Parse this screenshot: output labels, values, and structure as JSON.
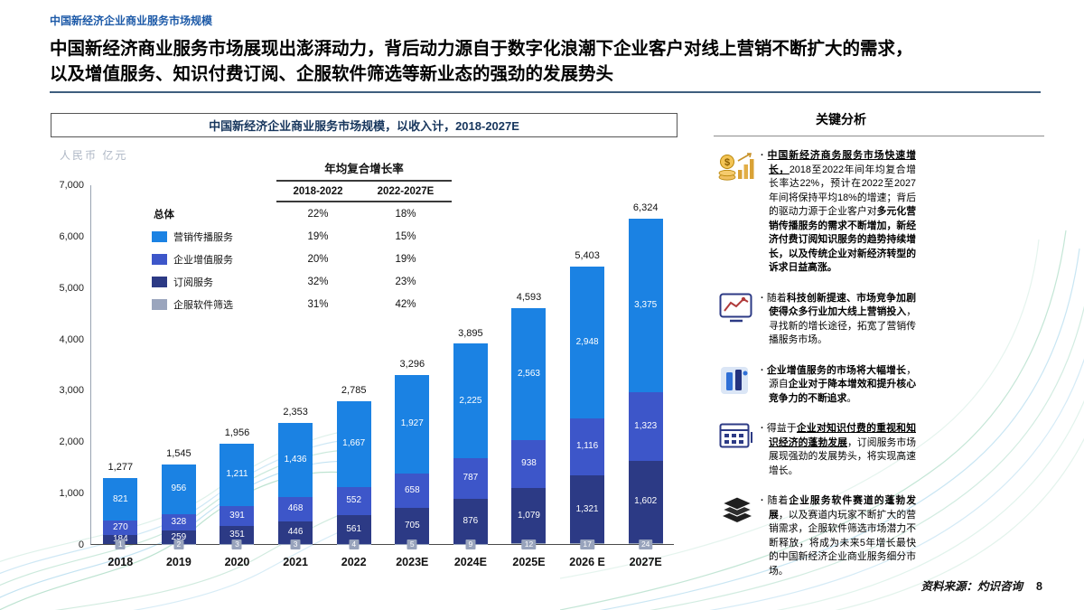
{
  "page": {
    "kicker": "中国新经济企业商业服务市场规模",
    "headline_line1": "中国新经济商业服务市场展现出澎湃动力，背后动力源自于数字化浪潮下企业客户对线上营销不断扩大的需求，",
    "headline_line2": "以及增值服务、知识付费订阅、企服软件筛选等新业态的强劲的发展势头",
    "source_label": "资料来源：灼识咨询",
    "page_number": "8"
  },
  "chart": {
    "title": "中国新经济企业商业服务市场规模，以收入计，2018-2027E",
    "unit_label": "人民币 亿元",
    "cagr": {
      "title": "年均复合增长率",
      "columns": [
        "2018-2022",
        "2022-2027E"
      ],
      "rows": [
        {
          "id": "total",
          "label": "总体",
          "header": true,
          "color": null,
          "values": [
            "22%",
            "18%"
          ]
        },
        {
          "id": "marketing-communication-services",
          "label": "营销传播服务",
          "header": false,
          "color": "#1b82e3",
          "values": [
            "19%",
            "15%"
          ]
        },
        {
          "id": "value-added-services",
          "label": "企业增值服务",
          "header": false,
          "color": "#3d56c9",
          "values": [
            "20%",
            "19%"
          ]
        },
        {
          "id": "subscription-services",
          "label": "订阅服务",
          "header": false,
          "color": "#2c3a85",
          "values": [
            "32%",
            "23%"
          ]
        },
        {
          "id": "software-selection",
          "label": "企服软件筛选",
          "header": false,
          "color": "#9aa5bd",
          "values": [
            "31%",
            "42%"
          ]
        }
      ]
    }
  },
  "chart_data": {
    "type": "bar",
    "stacked": true,
    "title": "中国新经济企业商业服务市场规模，以收入计，2018-2027E",
    "ylabel": "人民币 亿元",
    "ylim": [
      0,
      7000
    ],
    "ytick_step": 1000,
    "grid": false,
    "legend_position": "upper-left",
    "categories": [
      "2018",
      "2019",
      "2020",
      "2021",
      "2022",
      "2023E",
      "2024E",
      "2025E",
      "2026 E",
      "2027E"
    ],
    "series": [
      {
        "id": "marketing-communication-services",
        "name": "营销传播服务",
        "color": "#1b82e3",
        "values": [
          821,
          956,
          1211,
          1436,
          1667,
          1927,
          2225,
          2563,
          2948,
          3375
        ]
      },
      {
        "id": "value-added-services",
        "name": "企业增值服务",
        "color": "#3d56c9",
        "values": [
          270,
          328,
          391,
          468,
          552,
          658,
          787,
          938,
          1116,
          1323
        ]
      },
      {
        "id": "subscription-services",
        "name": "订阅服务",
        "color": "#2c3a85",
        "values": [
          184,
          259,
          351,
          446,
          561,
          705,
          876,
          1079,
          1321,
          1602
        ]
      },
      {
        "id": "software-selection",
        "name": "企服软件筛选",
        "color": "#9aa5bd",
        "badge": true,
        "values": [
          1,
          2,
          3,
          3,
          4,
          5,
          9,
          12,
          17,
          24
        ]
      }
    ],
    "totals": [
      1277,
      1545,
      1956,
      2353,
      2785,
      3296,
      3895,
      4593,
      5403,
      6324
    ]
  },
  "analysis": {
    "title": "关键分析",
    "items": [
      {
        "icon": "coin-growth-icon",
        "runs": [
          {
            "t": "中国新经济商务服务市场快速增长，",
            "b": true,
            "u": true
          },
          {
            "t": "2018至2022年间年均复合增长率达22%，预计在2022至2027年间将保持平均18%的增速；背后的驱动力源于企业客户对",
            "b": false
          },
          {
            "t": "多元化营销传播服务的需求不断增加，新经济付费订阅知识服务的趋势持续增长，以及传统企业对新经济转型的诉求日益高涨。",
            "b": true
          }
        ]
      },
      {
        "icon": "market-trend-icon",
        "runs": [
          {
            "t": "随着",
            "b": false
          },
          {
            "t": "科技创新提速、市场竞争加剧使得众多行业加大线上营销投入",
            "b": true
          },
          {
            "t": "，寻找新的增长途径，拓宽了营销传播服务市场。",
            "b": false
          }
        ]
      },
      {
        "icon": "value-bars-icon",
        "runs": [
          {
            "t": "企业增值服务的市场将大幅增长",
            "b": true
          },
          {
            "t": "，源自",
            "b": false
          },
          {
            "t": "企业对于降本增效和提升核心竞争力的不断追求",
            "b": true
          },
          {
            "t": "。",
            "b": false
          }
        ]
      },
      {
        "icon": "subscription-grid-icon",
        "runs": [
          {
            "t": "得益于",
            "b": false
          },
          {
            "t": "企业对知识付费的重视和知识经济的蓬勃发展",
            "b": true,
            "u": true
          },
          {
            "t": "，订阅服务市场展现强劲的发展势头，将实现高速增长。",
            "b": false
          }
        ]
      },
      {
        "icon": "layers-icon",
        "runs": [
          {
            "t": "随着",
            "b": false
          },
          {
            "t": "企业服务软件赛道的蓬勃发展",
            "b": true
          },
          {
            "t": "，以及赛道内玩家不断扩大的营销需求，企服软件筛选市场潜力不断释放，将成为未来5年增长最快的中国新经济企业商业服务细分市场。",
            "b": false
          }
        ]
      }
    ]
  }
}
